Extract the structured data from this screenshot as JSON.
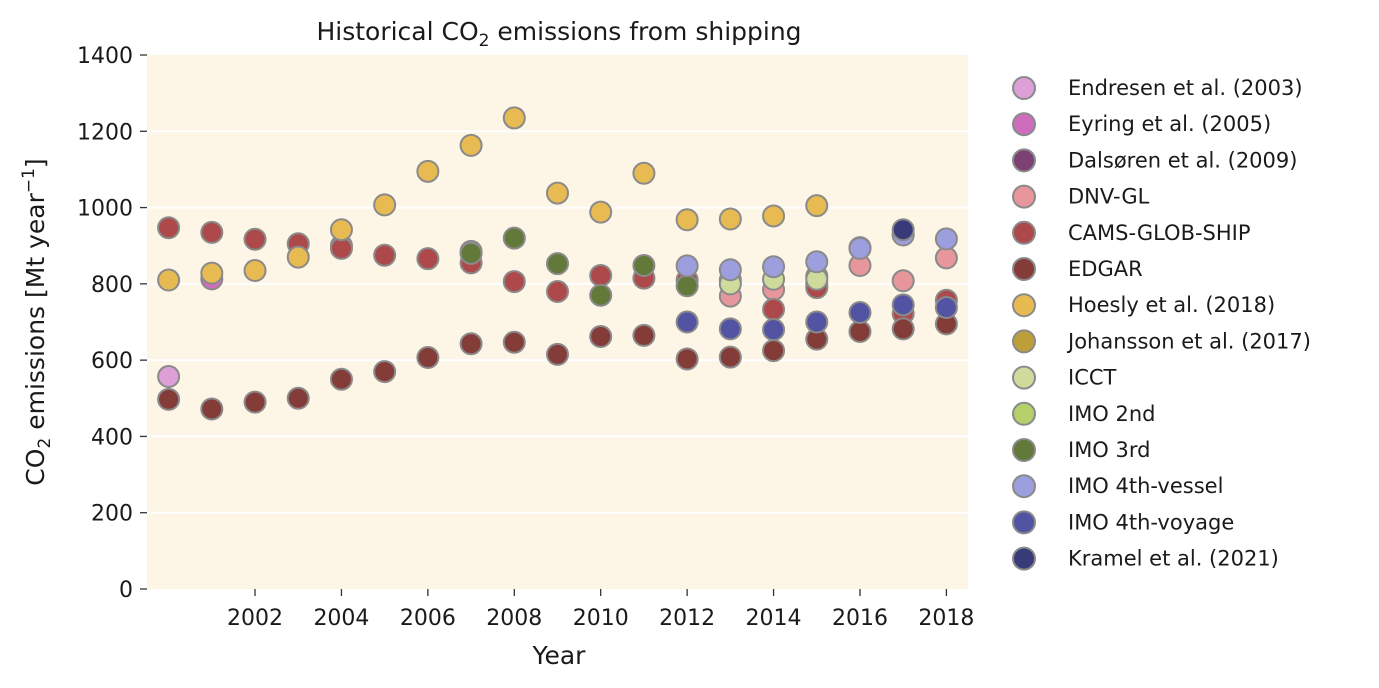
{
  "chart_data": {
    "type": "scatter",
    "title": "Historical CO",
    "title_subscript": "2",
    "title_suffix": " emissions from shipping",
    "xlabel": "Year",
    "ylabel": "CO",
    "ylabel_subscript": "2",
    "ylabel_suffix": " emissions [Mt year",
    "ylabel_superscript": "−1",
    "ylabel_close": "]",
    "xlim": [
      1999.5,
      2018.5
    ],
    "ylim": [
      0,
      1400
    ],
    "xticks": [
      2002,
      2004,
      2006,
      2008,
      2010,
      2012,
      2014,
      2016,
      2018
    ],
    "yticks": [
      0,
      200,
      400,
      600,
      800,
      1000,
      1200,
      1400
    ],
    "grid": "horizontal",
    "legend_position": "right",
    "colors": {
      "plot_background": "#fdf5e6",
      "grid": "#ffffff",
      "marker_edge": "#8a8a8a"
    },
    "series": [
      {
        "name": "Endresen et al. (2003)",
        "color": "#de9ed6",
        "points": [
          [
            2000,
            557
          ]
        ]
      },
      {
        "name": "Eyring et al. (2005)",
        "color": "#ce6dbd",
        "points": [
          [
            2001,
            813
          ]
        ]
      },
      {
        "name": "Dalsøren et al. (2009)",
        "color": "#7b4173",
        "points": [
          [
            2004,
            900
          ]
        ]
      },
      {
        "name": "DNV-GL",
        "color": "#e7969c",
        "points": [
          [
            2013,
            768
          ],
          [
            2014,
            785
          ],
          [
            2015,
            800
          ],
          [
            2016,
            848
          ],
          [
            2017,
            808
          ],
          [
            2018,
            868
          ]
        ]
      },
      {
        "name": "CAMS-GLOB-SHIP",
        "color": "#ad494a",
        "points": [
          [
            2000,
            947
          ],
          [
            2001,
            935
          ],
          [
            2002,
            917
          ],
          [
            2003,
            905
          ],
          [
            2004,
            893
          ],
          [
            2005,
            875
          ],
          [
            2006,
            866
          ],
          [
            2007,
            855
          ],
          [
            2008,
            806
          ],
          [
            2009,
            780
          ],
          [
            2010,
            822
          ],
          [
            2011,
            815
          ],
          [
            2012,
            810
          ],
          [
            2013,
            810
          ],
          [
            2014,
            733
          ],
          [
            2015,
            790
          ],
          [
            2017,
            722
          ],
          [
            2018,
            757
          ]
        ]
      },
      {
        "name": "EDGAR",
        "color": "#843c39",
        "points": [
          [
            2000,
            497
          ],
          [
            2001,
            472
          ],
          [
            2002,
            490
          ],
          [
            2003,
            500
          ],
          [
            2004,
            550
          ],
          [
            2005,
            570
          ],
          [
            2006,
            607
          ],
          [
            2007,
            643
          ],
          [
            2008,
            647
          ],
          [
            2009,
            615
          ],
          [
            2010,
            662
          ],
          [
            2011,
            665
          ],
          [
            2012,
            603
          ],
          [
            2013,
            608
          ],
          [
            2014,
            625
          ],
          [
            2015,
            655
          ],
          [
            2016,
            675
          ],
          [
            2017,
            682
          ],
          [
            2018,
            695
          ]
        ]
      },
      {
        "name": "Hoesly et al. (2018)",
        "color": "#e7ba52",
        "points": [
          [
            2000,
            810
          ],
          [
            2001,
            828
          ],
          [
            2002,
            835
          ],
          [
            2003,
            870
          ],
          [
            2004,
            942
          ],
          [
            2005,
            1007
          ],
          [
            2006,
            1095
          ],
          [
            2007,
            1163
          ],
          [
            2008,
            1235
          ],
          [
            2009,
            1038
          ],
          [
            2010,
            988
          ],
          [
            2011,
            1090
          ],
          [
            2012,
            968
          ],
          [
            2013,
            970
          ],
          [
            2014,
            978
          ],
          [
            2015,
            1005
          ]
        ]
      },
      {
        "name": "Johansson et al. (2017)",
        "color": "#bd9e39",
        "points": [
          [
            2015,
            820
          ]
        ]
      },
      {
        "name": "ICCT",
        "color": "#cedb9c",
        "points": [
          [
            2013,
            800
          ],
          [
            2014,
            812
          ],
          [
            2015,
            812
          ],
          [
            2016,
            895
          ],
          [
            2017,
            930
          ]
        ]
      },
      {
        "name": "IMO 2nd",
        "color": "#b5cf6b",
        "points": [
          [
            2007,
            885
          ]
        ]
      },
      {
        "name": "IMO 3rd",
        "color": "#637939",
        "points": [
          [
            2007,
            880
          ],
          [
            2008,
            920
          ],
          [
            2009,
            853
          ],
          [
            2010,
            770
          ],
          [
            2011,
            848
          ],
          [
            2012,
            795
          ]
        ]
      },
      {
        "name": "IMO 4th-vessel",
        "color": "#9c9ede",
        "points": [
          [
            2012,
            847
          ],
          [
            2013,
            837
          ],
          [
            2014,
            845
          ],
          [
            2015,
            858
          ],
          [
            2016,
            893
          ],
          [
            2017,
            928
          ],
          [
            2018,
            918
          ]
        ]
      },
      {
        "name": "IMO 4th-voyage",
        "color": "#5254a3",
        "points": [
          [
            2012,
            700
          ],
          [
            2013,
            682
          ],
          [
            2014,
            680
          ],
          [
            2015,
            700
          ],
          [
            2016,
            725
          ],
          [
            2017,
            745
          ],
          [
            2018,
            738
          ]
        ]
      },
      {
        "name": "Kramel et al. (2021)",
        "color": "#393b79",
        "points": [
          [
            2017,
            942
          ]
        ]
      }
    ]
  }
}
